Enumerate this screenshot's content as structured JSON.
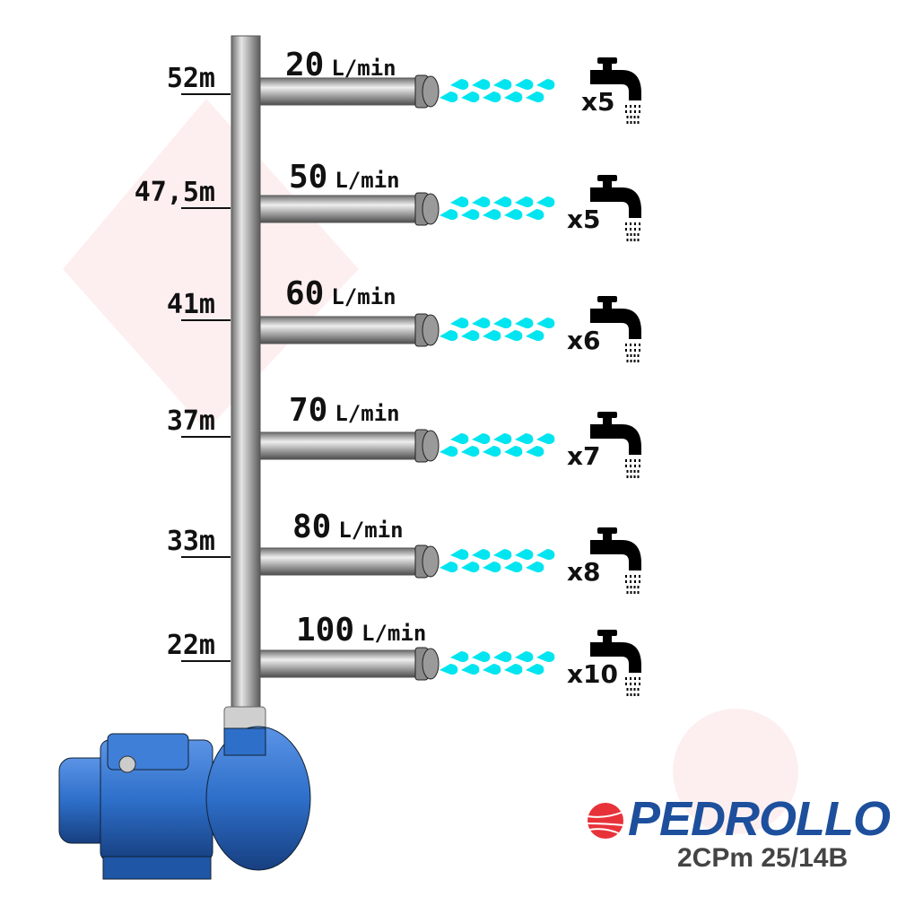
{
  "rows": [
    {
      "height": "52m",
      "flow": "20",
      "unit": "L/min",
      "taps": "x5"
    },
    {
      "height": "47,5m",
      "flow": "50",
      "unit": "L/min",
      "taps": "x5"
    },
    {
      "height": "41m",
      "flow": "60",
      "unit": "L/min",
      "taps": "x6"
    },
    {
      "height": "37m",
      "flow": "70",
      "unit": "L/min",
      "taps": "x7"
    },
    {
      "height": "33m",
      "flow": "80",
      "unit": "L/min",
      "taps": "x8"
    },
    {
      "height": "22m",
      "flow": "100",
      "unit": "L/min",
      "taps": "x10"
    }
  ],
  "brand": {
    "name": "PEDROLLO",
    "model": "2CPm 25/14B",
    "colors": {
      "blue": "#1d4f9c",
      "red": "#e8323a"
    }
  },
  "colors": {
    "water": "#00e5f0",
    "pump": "#2e6fc9",
    "pipe": "#9a9a9a"
  },
  "icons": [
    "faucet-icon",
    "water-drop-icon",
    "pump-icon",
    "pedrollo-logo-icon"
  ]
}
